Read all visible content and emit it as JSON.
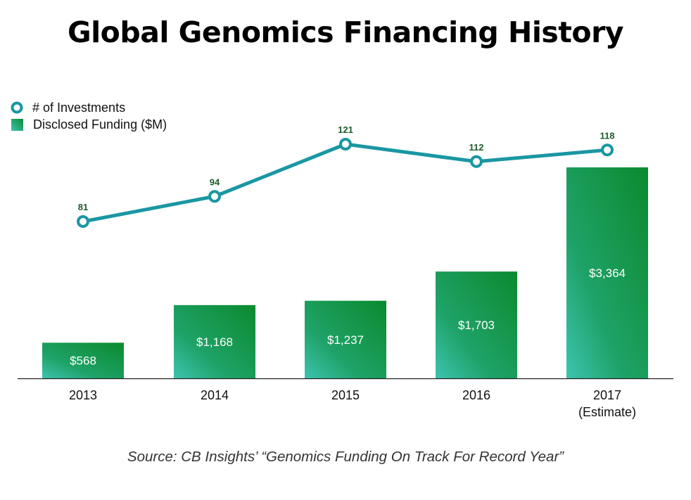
{
  "title": "Global Genomics Financing History",
  "source": "Source: CB Insights’ “Genomics Funding On Track For Record Year”",
  "colors": {
    "line": "#1a97a2",
    "bar_top": "#0d8a33",
    "bar_bottom": "#3cc4b0",
    "axis": "#222222"
  },
  "chart_data": {
    "type": "bar",
    "categories": [
      "2013",
      "2014",
      "2015",
      "2016",
      "2017"
    ],
    "category_sublabels": [
      "",
      "",
      "",
      "",
      "(Estimate)"
    ],
    "legend_placement": "top-left",
    "grid": false,
    "series": [
      {
        "name": "Disclosed Funding ($M)",
        "type": "bar",
        "values": [
          568,
          1168,
          1237,
          1703,
          3364
        ],
        "labels": [
          "$568",
          "$1,168",
          "$1,237",
          "$1,703",
          "$3,364"
        ],
        "ylim": [
          0,
          3364
        ]
      },
      {
        "name": "# of Investments",
        "type": "line",
        "values": [
          81,
          94,
          121,
          112,
          118
        ],
        "labels": [
          "81",
          "94",
          "121",
          "112",
          "118"
        ]
      }
    ]
  }
}
